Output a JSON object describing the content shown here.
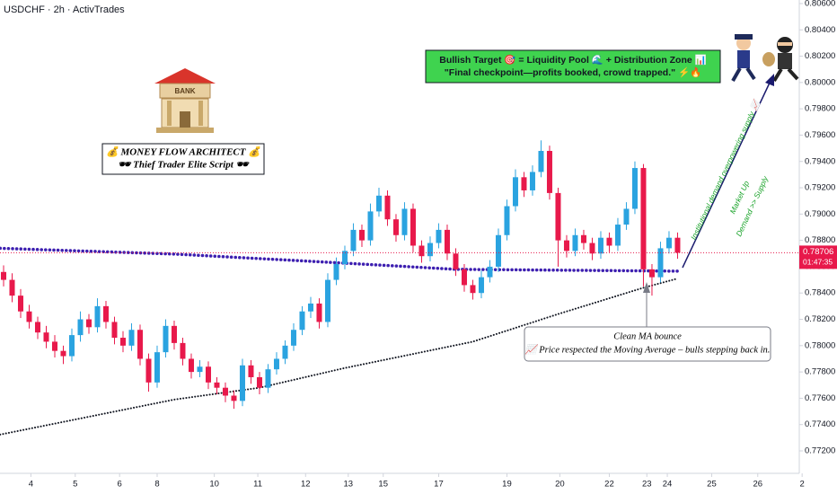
{
  "chart_data": {
    "type": "candlestick",
    "title": "USDCHF · 2h · ActivTrades",
    "open": [
      0.7856,
      0.785,
      0.7838,
      0.7826,
      0.7818,
      0.781,
      0.7803,
      0.7796,
      0.7792,
      0.7808,
      0.782,
      0.7814,
      0.783,
      0.7818,
      0.7806,
      0.78,
      0.7812,
      0.779,
      0.7772,
      0.7795,
      0.7815,
      0.7802,
      0.779,
      0.778,
      0.7784,
      0.7772,
      0.7768,
      0.7762,
      0.7758,
      0.7785,
      0.7776,
      0.7768,
      0.7782,
      0.779,
      0.78,
      0.7812,
      0.7826,
      0.7832,
      0.7818,
      0.785,
      0.7862,
      0.7872,
      0.7888,
      0.788,
      0.7902,
      0.7914,
      0.7896,
      0.7884,
      0.7904,
      0.7876,
      0.7868,
      0.7878,
      0.7888,
      0.787,
      0.7858,
      0.7846,
      0.784,
      0.7852,
      0.786,
      0.7884,
      0.7906,
      0.7928,
      0.7918,
      0.7932,
      0.7948,
      0.7916,
      0.788,
      0.7872,
      0.7884,
      0.7878,
      0.787,
      0.7882,
      0.7876,
      0.7892,
      0.7904,
      0.7935,
      0.7858,
      0.7852,
      0.7874,
      0.7882
    ],
    "high": [
      0.7861,
      0.7855,
      0.7843,
      0.7831,
      0.7822,
      0.7815,
      0.7808,
      0.78,
      0.7813,
      0.7826,
      0.7824,
      0.7836,
      0.7834,
      0.7822,
      0.7811,
      0.7817,
      0.7816,
      0.7794,
      0.78,
      0.782,
      0.7819,
      0.7806,
      0.7794,
      0.7789,
      0.7788,
      0.7776,
      0.7772,
      0.7766,
      0.779,
      0.7789,
      0.778,
      0.7786,
      0.7795,
      0.7804,
      0.7817,
      0.783,
      0.7837,
      0.7836,
      0.7855,
      0.7867,
      0.7876,
      0.7893,
      0.7892,
      0.7908,
      0.792,
      0.7918,
      0.79,
      0.7909,
      0.7908,
      0.788,
      0.7883,
      0.7893,
      0.7892,
      0.7874,
      0.7862,
      0.785,
      0.7857,
      0.7865,
      0.7889,
      0.7911,
      0.7934,
      0.7932,
      0.7937,
      0.7956,
      0.7952,
      0.792,
      0.7884,
      0.7889,
      0.7888,
      0.7882,
      0.7887,
      0.7886,
      0.7897,
      0.7909,
      0.794,
      0.7938,
      0.7862,
      0.7879,
      0.7887,
      0.7886
    ],
    "low": [
      0.7845,
      0.7833,
      0.7821,
      0.7813,
      0.7805,
      0.7798,
      0.7791,
      0.7786,
      0.7788,
      0.7803,
      0.7809,
      0.781,
      0.7813,
      0.7801,
      0.7795,
      0.7796,
      0.7785,
      0.7765,
      0.7768,
      0.7791,
      0.7797,
      0.7785,
      0.7775,
      0.7776,
      0.7767,
      0.7763,
      0.7757,
      0.7752,
      0.7754,
      0.7771,
      0.7763,
      0.7764,
      0.7778,
      0.7786,
      0.7796,
      0.7808,
      0.7821,
      0.7813,
      0.7814,
      0.7846,
      0.7858,
      0.7868,
      0.7875,
      0.7876,
      0.7898,
      0.7891,
      0.7879,
      0.788,
      0.7871,
      0.7863,
      0.7864,
      0.7874,
      0.7865,
      0.7853,
      0.7841,
      0.7835,
      0.7836,
      0.7848,
      0.7856,
      0.788,
      0.7902,
      0.7913,
      0.7914,
      0.7928,
      0.7911,
      0.786,
      0.7867,
      0.7868,
      0.7873,
      0.7865,
      0.7866,
      0.7871,
      0.7872,
      0.7888,
      0.79,
      0.7845,
      0.7838,
      0.7848,
      0.787,
      0.7866
    ],
    "close": [
      0.785,
      0.7838,
      0.7826,
      0.7818,
      0.781,
      0.7803,
      0.7796,
      0.7792,
      0.7808,
      0.782,
      0.7814,
      0.783,
      0.7818,
      0.7806,
      0.78,
      0.7812,
      0.779,
      0.7772,
      0.7795,
      0.7815,
      0.7802,
      0.779,
      0.778,
      0.7784,
      0.7772,
      0.7768,
      0.7762,
      0.7758,
      0.7785,
      0.7776,
      0.7768,
      0.7782,
      0.779,
      0.78,
      0.7812,
      0.7826,
      0.7832,
      0.7818,
      0.785,
      0.7862,
      0.7872,
      0.7888,
      0.788,
      0.7902,
      0.7914,
      0.7896,
      0.7884,
      0.7904,
      0.7876,
      0.7868,
      0.7878,
      0.7888,
      0.787,
      0.7858,
      0.7846,
      0.784,
      0.7852,
      0.786,
      0.7884,
      0.7906,
      0.7928,
      0.7918,
      0.7932,
      0.7948,
      0.7916,
      0.788,
      0.7872,
      0.7884,
      0.7878,
      0.787,
      0.7882,
      0.7876,
      0.7892,
      0.7904,
      0.7935,
      0.7858,
      0.7852,
      0.7874,
      0.7882,
      0.78706
    ],
    "up_color": "#2aa3e0",
    "down_color": "#e8194b",
    "indicators": [
      {
        "color": "#3d1fb0",
        "x": [
          -0.4,
          20,
          40,
          53,
          79
        ],
        "values": [
          0.7874,
          0.78696,
          0.78627,
          0.7858,
          0.78566
        ]
      },
      {
        "color": "#131722",
        "x": [
          -0.4,
          20,
          30,
          40,
          55,
          65,
          75,
          79
        ],
        "values": [
          0.77324,
          0.7759,
          0.7768,
          0.7783,
          0.7803,
          0.7824,
          0.7844,
          0.7851
        ]
      }
    ],
    "last_price": 0.78706,
    "last_price_color": "#e8194b",
    "countdown": "01:47:35",
    "ylim": [
      0.77043,
      0.80627
    ],
    "yticks": [
      {
        "value": 0.806,
        "label": "0.80600"
      },
      {
        "value": 0.804,
        "label": "0.80400"
      },
      {
        "value": 0.802,
        "label": "0.80200"
      },
      {
        "value": 0.8,
        "label": "0.80000"
      },
      {
        "value": 0.798,
        "label": "0.79800"
      },
      {
        "value": 0.796,
        "label": "0.79600"
      },
      {
        "value": 0.794,
        "label": "0.79400"
      },
      {
        "value": 0.792,
        "label": "0.79200"
      },
      {
        "value": 0.79,
        "label": "0.79000"
      },
      {
        "value": 0.788,
        "label": "0.78800"
      },
      {
        "value": 0.786,
        "label": "0.78600"
      },
      {
        "value": 0.784,
        "label": "0.78400"
      },
      {
        "value": 0.782,
        "label": "0.78200"
      },
      {
        "value": 0.78,
        "label": "0.78000"
      },
      {
        "value": 0.778,
        "label": "0.77800"
      },
      {
        "value": 0.776,
        "label": "0.77600"
      },
      {
        "value": 0.774,
        "label": "0.77400"
      },
      {
        "value": 0.772,
        "label": "0.77200"
      }
    ],
    "xlim": [
      -0.42,
      94.32
    ],
    "xticks": [
      {
        "value": 3.2,
        "label": "4"
      },
      {
        "value": 8.4,
        "label": "5"
      },
      {
        "value": 13.6,
        "label": "6"
      },
      {
        "value": 18,
        "label": "8"
      },
      {
        "value": 24.7,
        "label": "10"
      },
      {
        "value": 29.8,
        "label": "11"
      },
      {
        "value": 35.4,
        "label": "12"
      },
      {
        "value": 40.4,
        "label": "13"
      },
      {
        "value": 44.5,
        "label": "15"
      },
      {
        "value": 51,
        "label": "17"
      },
      {
        "value": 59,
        "label": "19"
      },
      {
        "value": 65.2,
        "label": "20"
      },
      {
        "value": 71,
        "label": "22"
      },
      {
        "value": 75.4,
        "label": "23"
      },
      {
        "value": 77.8,
        "label": "24"
      },
      {
        "value": 83,
        "label": "25"
      },
      {
        "value": 88.4,
        "label": "26"
      },
      {
        "value": 93.6,
        "label": "2"
      }
    ],
    "grid": false,
    "annotations": {
      "bank": "BANK",
      "brand": [
        "💰 MONEY FLOW ARCHITECT 💰",
        "🕶 Thief Trader Elite Script 🕶"
      ],
      "target": [
        "Bullish Target 🎯 = Liquidity Pool 🌊 + Distribution Zone 📊",
        "\"Final checkpoint—profits booked, crowd trapped.\" ⚡🔥"
      ],
      "callout": [
        "Clean MA bounce",
        "📈 Price respected the Moving Average – bulls stepping back in."
      ],
      "trend": [
        "Institutional demand overpowering supply 📈",
        "Market Up",
        "Demand >> Supply"
      ]
    }
  }
}
